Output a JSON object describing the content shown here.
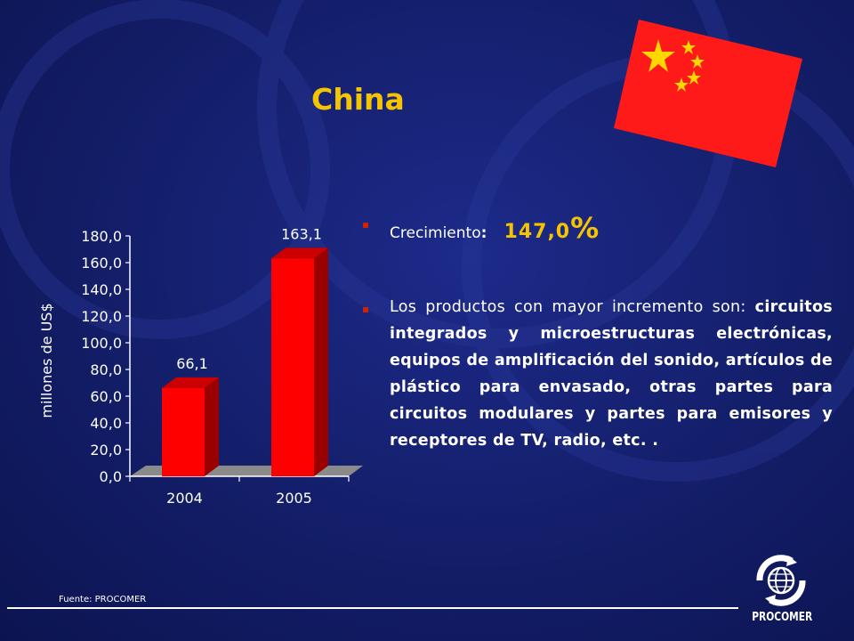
{
  "slide": {
    "title": "China",
    "source": "Fuente: PROCOMER",
    "logo_text": "PROCOMER"
  },
  "bullets": {
    "growth_label": "Crecimiento",
    "growth_colon": ":",
    "growth_value": "147,0",
    "growth_pct": "%",
    "products_intro": "Los productos con mayor incremento son: ",
    "products_list": "circuitos integrados y microestructuras electrónicas,  equipos de amplificación del sonido,  artículos de plástico para envasado, otras partes para circuitos modulares y partes para emisores y receptores de TV, radio, etc. ."
  },
  "colors": {
    "title": "#f5c400",
    "bar_front": "#ff0000",
    "bar_side": "#9a0000",
    "bar_top": "#cc0000",
    "flag_red": "#ff1a1a",
    "flag_star": "#ffd700",
    "bullet": "#cc2200"
  },
  "chart_data": {
    "type": "bar",
    "categories": [
      "2004",
      "2005"
    ],
    "values": [
      66.1,
      163.1
    ],
    "data_labels": [
      "66,1",
      "163,1"
    ],
    "ylabel": "millones de US$",
    "ylim": [
      0,
      180
    ],
    "yticks": [
      "0,0",
      "20,0",
      "40,0",
      "60,0",
      "80,0",
      "100,0",
      "120,0",
      "140,0",
      "160,0",
      "180,0"
    ],
    "ystep": 20,
    "three_d": true,
    "grid": false
  }
}
